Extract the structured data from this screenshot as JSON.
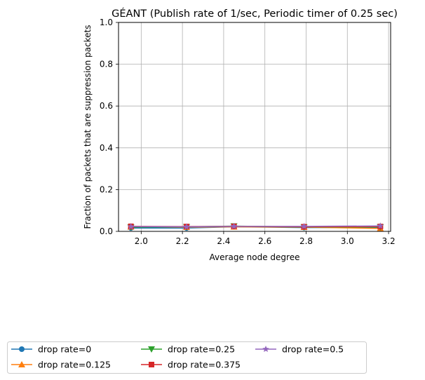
{
  "chart_data": {
    "type": "line",
    "title": "GÉANT (Publish rate of 1/sec, Periodic timer of 0.25 sec)",
    "xlabel": "Average node degree",
    "ylabel": "Fraction of packets that are suppression packets",
    "xlim": [
      1.89,
      3.21
    ],
    "ylim": [
      0,
      1.0
    ],
    "xticks": [
      "2.0",
      "2.2",
      "2.4",
      "2.6",
      "2.8",
      "3.0",
      "3.2"
    ],
    "yticks": [
      "0.0",
      "0.2",
      "0.4",
      "0.6",
      "0.8",
      "1.0"
    ],
    "grid": true,
    "legend_placement": "below",
    "x": [
      1.95,
      2.22,
      2.45,
      2.79,
      3.16
    ],
    "series": [
      {
        "name": "drop rate=0",
        "color": "#1f77b4",
        "marker": "circle",
        "values": [
          0.016,
          0.016,
          0.022,
          0.018,
          0.019
        ]
      },
      {
        "name": "drop rate=0.125",
        "color": "#ff7f0e",
        "marker": "triangle-up",
        "values": [
          0.022,
          0.02,
          0.022,
          0.02,
          0.014
        ]
      },
      {
        "name": "drop rate=0.25",
        "color": "#2ca02c",
        "marker": "triangle-down",
        "values": [
          0.02,
          0.022,
          0.025,
          0.021,
          0.021
        ]
      },
      {
        "name": "drop rate=0.375",
        "color": "#d62728",
        "marker": "square",
        "values": [
          0.024,
          0.023,
          0.024,
          0.022,
          0.023
        ]
      },
      {
        "name": "drop rate=0.5",
        "color": "#9467bd",
        "marker": "star",
        "values": [
          0.023,
          0.022,
          0.024,
          0.024,
          0.026
        ]
      }
    ]
  }
}
